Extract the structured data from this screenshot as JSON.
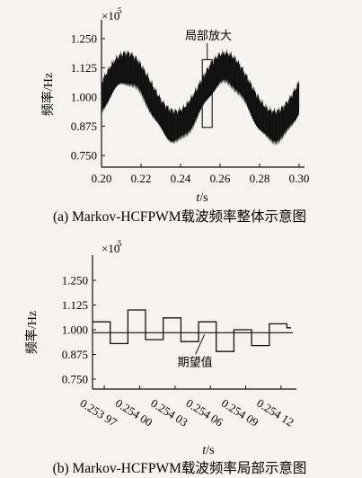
{
  "chart_data": [
    {
      "type": "line",
      "caption": "(a) Markov-HCFPWM载波频率整体示意图",
      "multiplier": "×10",
      "multiplier_exp": "5",
      "xlabel_var": "t",
      "xlabel_unit": "/s",
      "ylabel": "频率/Hz",
      "xlim": [
        0.2,
        0.3
      ],
      "ylim": [
        0.7,
        1.3
      ],
      "x_ticks": [
        "0.20",
        "0.22",
        "0.24",
        "0.26",
        "0.28",
        "0.30"
      ],
      "x_tick_values": [
        0.2,
        0.22,
        0.24,
        0.26,
        0.28,
        0.3
      ],
      "y_ticks": [
        "1.250",
        "1.125",
        "1.000",
        "0.875",
        "0.750"
      ],
      "y_tick_values": [
        1.25,
        1.125,
        1.0,
        0.875,
        0.75
      ],
      "signal": {
        "description_center": 1.0,
        "sine_amplitude": 0.125,
        "band_halfwidth": 0.065,
        "sine_period": 0.05,
        "phase_zero_at": 0.2
      },
      "annotation": {
        "text": "局部放大",
        "box_x": [
          0.251,
          0.256
        ],
        "box_y": [
          0.87,
          1.16
        ]
      }
    },
    {
      "type": "line",
      "caption": "(b) Markov-HCFPWM载波频率局部示意图",
      "multiplier": "×10",
      "multiplier_exp": "5",
      "xlabel_var": "t",
      "xlabel_unit": "/s",
      "ylabel": "频率/Hz",
      "xlim": [
        0.25396,
        0.25413
      ],
      "ylim": [
        0.7,
        1.35
      ],
      "x_ticks": [
        "0.253 97",
        "0.254 00",
        "0.254 03",
        "0.254 06",
        "0.254 09",
        "0.254 12"
      ],
      "x_tick_values": [
        0.25397,
        0.254,
        0.25403,
        0.25406,
        0.25409,
        0.25412
      ],
      "y_ticks": [
        "1.250",
        "1.125",
        "1.000",
        "0.875",
        "0.750"
      ],
      "y_tick_values": [
        1.25,
        1.125,
        1.0,
        0.875,
        0.75
      ],
      "expected_value": {
        "label": "期望值",
        "y": 0.985
      },
      "step_series": {
        "x": [
          0.25396,
          0.253975,
          0.25399,
          0.254005,
          0.25402,
          0.254035,
          0.25405,
          0.254065,
          0.25408,
          0.254095,
          0.25411,
          0.254125
        ],
        "y": [
          1.04,
          0.93,
          1.1,
          0.95,
          1.06,
          0.94,
          1.04,
          0.89,
          1.0,
          0.92,
          1.03,
          1.01
        ]
      }
    }
  ]
}
